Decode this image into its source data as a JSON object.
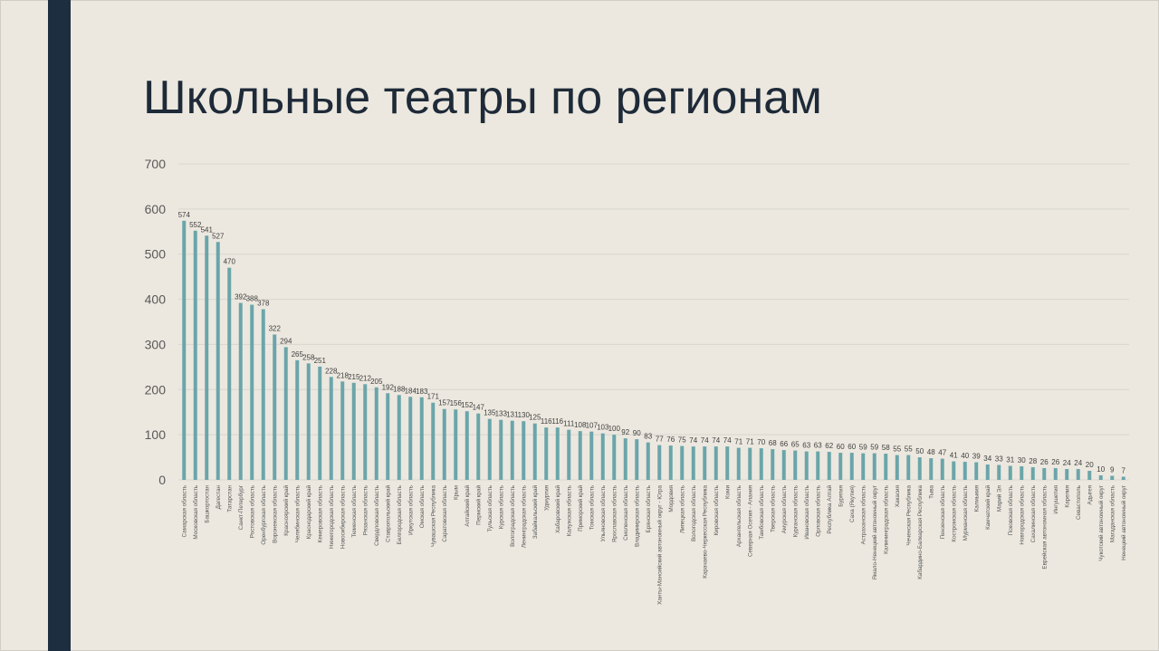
{
  "title": "Школьные театры по регионам",
  "colors": {
    "bar": "#6aa5aa",
    "sidebar": "#1c2e3f",
    "background": "#ece8df",
    "title": "#1e2a38"
  },
  "chart_data": {
    "type": "bar",
    "title": "Школьные театры по регионам",
    "xlabel": "",
    "ylabel": "",
    "ylim": [
      0,
      700
    ],
    "yticks": [
      0,
      100,
      200,
      300,
      400,
      500,
      600,
      700
    ],
    "grid": true,
    "data_labels": true,
    "categories": [
      "Самарская область",
      "Московская область",
      "Башкортостан",
      "Дагестан",
      "Татарстан",
      "Санкт-Петербург",
      "Ростовская область",
      "Оренбургская область",
      "Воронежская область",
      "Красноярский край",
      "Челябинская область",
      "Краснодарский край",
      "Кемеровская область",
      "Нижегородская область",
      "Новосибирская область",
      "Тюменская область",
      "Рязанская область",
      "Свердловская область",
      "Ставропольский край",
      "Белгородская область",
      "Иркутская область",
      "Омская область",
      "Чувашская Республика",
      "Саратовская область",
      "Крым",
      "Алтайский край",
      "Пермский край",
      "Тульская область",
      "Курская область",
      "Волгоградская область",
      "Ленинградская область",
      "Забайкальский край",
      "Удмуртия",
      "Хабаровский край",
      "Калужская область",
      "Приморский край",
      "Томская область",
      "Ульяновская область",
      "Ярославская область",
      "Смоленская область",
      "Владимирская область",
      "Брянская область",
      "Ханты-Мансийский автономный округ - Югра",
      "Мордовия",
      "Липецкая область",
      "Вологодская область",
      "Карачаево-Черкесская Республика",
      "Кировская область",
      "Коми",
      "Архангельская область",
      "Северная Осетия - Алания",
      "Тамбовская область",
      "Тверская область",
      "Амурская область",
      "Курганская область",
      "Ивановская область",
      "Орловская область",
      "Республика Алтай",
      "Бурятия",
      "Саха (Якутия)",
      "Астраханская область",
      "Ямало-Ненецкий автономный округ",
      "Калининградская область",
      "Хакасия",
      "Чеченская Республика",
      "Кабардино-Балкарская Республика",
      "Тыва",
      "Пензенская область",
      "Костромская область",
      "Мурманская область",
      "Калмыкия",
      "Камчатский край",
      "Марий Эл",
      "Псковская область",
      "Новгородская область",
      "Сахалинская область",
      "Еврейская автономная область",
      "Ингушетия",
      "Карелия",
      "Севастополь",
      "Адыгея",
      "Чукотский автономный округ",
      "Магаданская область",
      "Ненецкий автономный округ"
    ],
    "values": [
      574,
      552,
      541,
      527,
      470,
      392,
      388,
      378,
      322,
      294,
      265,
      258,
      251,
      228,
      218,
      215,
      212,
      205,
      192,
      188,
      184,
      183,
      171,
      157,
      156,
      152,
      147,
      135,
      133,
      131,
      130,
      125,
      116,
      116,
      111,
      108,
      107,
      103,
      100,
      92,
      90,
      83,
      77,
      76,
      75,
      74,
      74,
      74,
      74,
      71,
      71,
      70,
      68,
      66,
      65,
      63,
      63,
      62,
      60,
      60,
      59,
      59,
      58,
      55,
      55,
      50,
      48,
      47,
      41,
      40,
      39,
      34,
      33,
      31,
      30,
      28,
      26,
      26,
      24,
      24,
      20,
      10,
      9,
      7
    ]
  }
}
